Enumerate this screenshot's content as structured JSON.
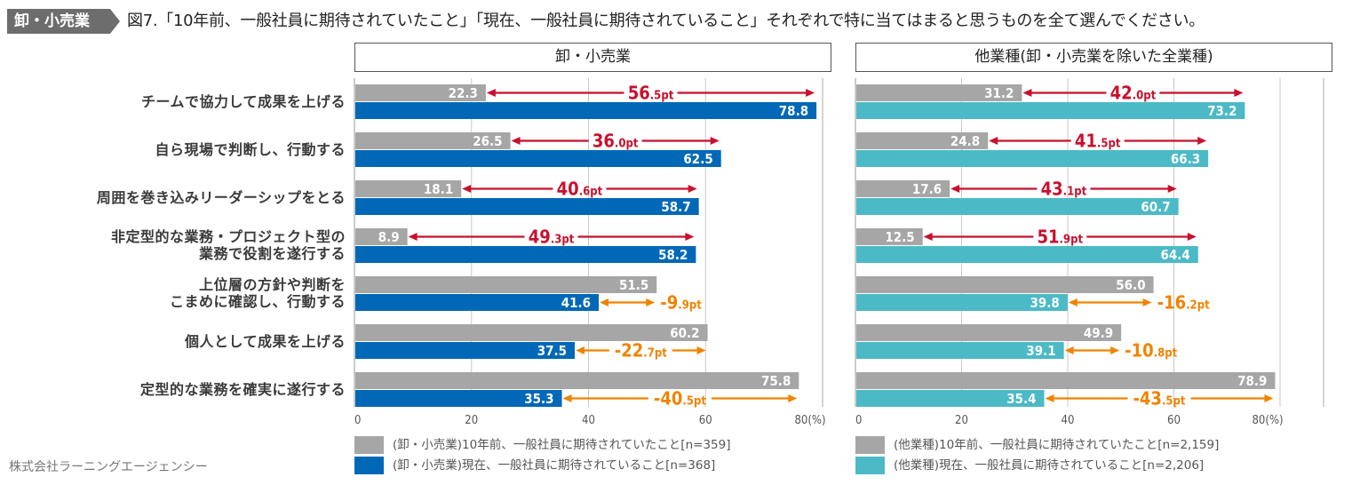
{
  "header": {
    "tag": "卸・小売業",
    "title": "図7.「10年前、一般社員に期待されていたこと」「現在、一般社員に期待されていること」それぞれで特に当てはまると思うものを全て選んでください。"
  },
  "footer": {
    "credit": "株式会社ラーニングエージェンシー"
  },
  "colors": {
    "past": "#a6a6a6",
    "retail_now": "#0068b7",
    "other_now": "#4bbac6",
    "increase": "#c8102e",
    "decrease": "#f08300",
    "grid": "#c8c8c8"
  },
  "categories": [
    "チームで協力して成果を上げる",
    "自ら現場で判断し、行動する",
    "周囲を巻き込みリーダーシップをとる",
    "非定型的な業務・プロジェクト型の\n業務で役割を遂行する",
    "上位層の方針や判断を\nこまめに確認し、行動する",
    "個人として成果を上げる",
    "定型的な業務を確実に遂行する"
  ],
  "chart_data": [
    {
      "type": "bar",
      "title": "卸・小売業",
      "orientation": "horizontal",
      "categories": [
        "チームで協力して成果を上げる",
        "自ら現場で判断し、行動する",
        "周囲を巻き込みリーダーシップをとる",
        "非定型的な業務・プロジェクト型の業務で役割を遂行する",
        "上位層の方針や判断をこまめに確認し、行動する",
        "個人として成果を上げる",
        "定型的な業務を確実に遂行する"
      ],
      "series": [
        {
          "name": "(卸・小売業)10年前、一般社員に期待されていたこと[n=359]",
          "color": "#a6a6a6",
          "values": [
            22.3,
            26.5,
            18.1,
            8.9,
            51.5,
            60.2,
            75.8
          ]
        },
        {
          "name": "(卸・小売業)現在、一般社員に期待されていること[n=368]",
          "color": "#0068b7",
          "values": [
            78.8,
            62.5,
            58.7,
            58.2,
            41.6,
            37.5,
            35.3
          ]
        }
      ],
      "differences": [
        {
          "int": "56",
          "dec": ".5pt",
          "sign": "+"
        },
        {
          "int": "36",
          "dec": ".0pt",
          "sign": "+"
        },
        {
          "int": "40",
          "dec": ".6pt",
          "sign": "+"
        },
        {
          "int": "49",
          "dec": ".3pt",
          "sign": "+"
        },
        {
          "int": "-9",
          "dec": ".9pt",
          "sign": "-"
        },
        {
          "int": "-22",
          "dec": ".7pt",
          "sign": "-"
        },
        {
          "int": "-40",
          "dec": ".5pt",
          "sign": "-"
        }
      ],
      "xlim": [
        0,
        80
      ],
      "xticks": [
        "0",
        "20",
        "40",
        "60",
        "80(%)"
      ],
      "xlabel": "",
      "ylabel": "",
      "grid": true,
      "legend": "bottom"
    },
    {
      "type": "bar",
      "title": "他業種(卸・小売業を除いた全業種)",
      "orientation": "horizontal",
      "categories": [
        "チームで協力して成果を上げる",
        "自ら現場で判断し、行動する",
        "周囲を巻き込みリーダーシップをとる",
        "非定型的な業務・プロジェクト型の業務で役割を遂行する",
        "上位層の方針や判断をこまめに確認し、行動する",
        "個人として成果を上げる",
        "定型的な業務を確実に遂行する"
      ],
      "series": [
        {
          "name": "(他業種)10年前、一般社員に期待されていたこと[n=2,159]",
          "color": "#a6a6a6",
          "values": [
            31.2,
            24.8,
            17.6,
            12.5,
            56.0,
            49.9,
            78.9
          ]
        },
        {
          "name": "(他業種)現在、一般社員に期待されていること[n=2,206]",
          "color": "#4bbac6",
          "values": [
            73.2,
            66.3,
            60.7,
            64.4,
            39.8,
            39.1,
            35.4
          ]
        }
      ],
      "differences": [
        {
          "int": "42",
          "dec": ".0pt",
          "sign": "+"
        },
        {
          "int": "41",
          "dec": ".5pt",
          "sign": "+"
        },
        {
          "int": "43",
          "dec": ".1pt",
          "sign": "+"
        },
        {
          "int": "51",
          "dec": ".9pt",
          "sign": "+"
        },
        {
          "int": "-16",
          "dec": ".2pt",
          "sign": "-"
        },
        {
          "int": "-10",
          "dec": ".8pt",
          "sign": "-"
        },
        {
          "int": "-43",
          "dec": ".5pt",
          "sign": "-"
        }
      ],
      "xlim": [
        0,
        80
      ],
      "xticks": [
        "0",
        "20",
        "40",
        "60",
        "80(%)"
      ],
      "xlabel": "",
      "ylabel": "",
      "grid": true,
      "legend": "bottom"
    }
  ]
}
